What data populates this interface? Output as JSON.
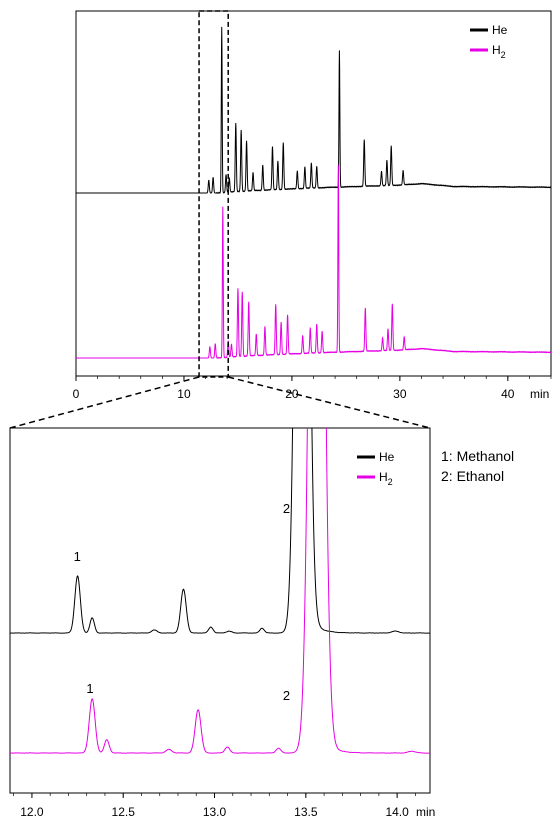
{
  "chart_data": [
    {
      "type": "line",
      "title": "",
      "xlabel": "min",
      "ylabel": "",
      "xlim": [
        0,
        44
      ],
      "x_ticks": [
        "0",
        "10",
        "20",
        "30",
        "40"
      ],
      "grid": false,
      "legend": {
        "placement": "top-right",
        "entries": [
          {
            "label": "He",
            "subscript": "",
            "color": "#000000"
          },
          {
            "label": "H",
            "subscript": "2",
            "color": "#e600e6"
          }
        ]
      },
      "zoom_window": [
        11.4,
        14.1
      ],
      "series": [
        {
          "name": "He",
          "color": "#000000",
          "baseline": 0,
          "noise_threshold": 13,
          "drift": [
            [
              0,
              0
            ],
            [
              13,
              0
            ],
            [
              16,
              3
            ],
            [
              22,
              7
            ],
            [
              30,
              11
            ],
            [
              32,
              13
            ],
            [
              35,
              9
            ],
            [
              44,
              8
            ]
          ],
          "peaks": [
            [
              12.3,
              18,
              0.05
            ],
            [
              12.7,
              22,
              0.05
            ],
            [
              13.5,
              230,
              0.04
            ],
            [
              13.9,
              25,
              0.05
            ],
            [
              14.2,
              20,
              0.05
            ],
            [
              14.8,
              95,
              0.05
            ],
            [
              15.3,
              85,
              0.05
            ],
            [
              15.8,
              70,
              0.05
            ],
            [
              16.4,
              25,
              0.05
            ],
            [
              17.3,
              35,
              0.05
            ],
            [
              18.2,
              60,
              0.05
            ],
            [
              18.7,
              40,
              0.05
            ],
            [
              19.2,
              65,
              0.05
            ],
            [
              20.5,
              25,
              0.05
            ],
            [
              21.2,
              30,
              0.05
            ],
            [
              21.8,
              35,
              0.05
            ],
            [
              22.3,
              30,
              0.05
            ],
            [
              24.4,
              190,
              0.04
            ],
            [
              26.7,
              65,
              0.05
            ],
            [
              28.3,
              20,
              0.05
            ],
            [
              28.8,
              35,
              0.05
            ],
            [
              29.2,
              55,
              0.05
            ],
            [
              30.3,
              20,
              0.05
            ]
          ]
        },
        {
          "name": "H2",
          "color": "#e600e6",
          "baseline": 0,
          "noise_threshold": 13,
          "drift": [
            [
              0,
              0
            ],
            [
              13,
              0
            ],
            [
              16,
              3
            ],
            [
              22,
              7
            ],
            [
              30,
              11
            ],
            [
              32,
              13
            ],
            [
              35,
              9
            ],
            [
              44,
              8
            ]
          ],
          "peaks": [
            [
              12.4,
              16,
              0.05
            ],
            [
              12.9,
              20,
              0.05
            ],
            [
              13.6,
              210,
              0.04
            ],
            [
              14.1,
              23,
              0.05
            ],
            [
              14.4,
              18,
              0.05
            ],
            [
              15.0,
              95,
              0.05
            ],
            [
              15.4,
              90,
              0.05
            ],
            [
              16.0,
              75,
              0.05
            ],
            [
              16.7,
              30,
              0.05
            ],
            [
              17.5,
              40,
              0.05
            ],
            [
              18.5,
              70,
              0.05
            ],
            [
              19.0,
              45,
              0.05
            ],
            [
              19.6,
              55,
              0.05
            ],
            [
              21.0,
              25,
              0.05
            ],
            [
              21.7,
              35,
              0.05
            ],
            [
              22.3,
              40,
              0.05
            ],
            [
              22.8,
              30,
              0.05
            ],
            [
              24.3,
              260,
              0.04
            ],
            [
              26.8,
              60,
              0.05
            ],
            [
              28.4,
              18,
              0.05
            ],
            [
              28.9,
              30,
              0.05
            ],
            [
              29.3,
              65,
              0.05
            ],
            [
              30.4,
              18,
              0.05
            ]
          ]
        }
      ]
    },
    {
      "type": "line",
      "title": "",
      "xlabel": "min",
      "ylabel": "",
      "xlim": [
        11.88,
        14.18
      ],
      "x_ticks": [
        "12.0",
        "12.5",
        "13.0",
        "13.5",
        "14.0"
      ],
      "grid": false,
      "legend": {
        "placement": "top-right",
        "entries": [
          {
            "label": "He",
            "subscript": "",
            "color": "#000000"
          },
          {
            "label": "H",
            "subscript": "2",
            "color": "#e600e6"
          }
        ]
      },
      "annotations": [
        {
          "text": "1",
          "series": "He",
          "x": 12.25,
          "y": 120
        },
        {
          "text": "2",
          "series": "He",
          "x": 13.44,
          "y": 200
        },
        {
          "text": "1",
          "series": "H2",
          "x": 12.32,
          "y": 100
        },
        {
          "text": "2",
          "series": "H2",
          "x": 13.44,
          "y": 88
        }
      ],
      "peak_key": [
        "1: Methanol",
        "2: Ethanol"
      ],
      "series": [
        {
          "name": "He",
          "color": "#000000",
          "baseline": 0,
          "noise_threshold": 2,
          "peaks": [
            [
              12.25,
              95,
              0.015
            ],
            [
              12.33,
              25,
              0.012
            ],
            [
              12.67,
              5,
              0.015
            ],
            [
              12.83,
              73,
              0.015
            ],
            [
              12.98,
              10,
              0.012
            ],
            [
              13.08,
              3,
              0.015
            ],
            [
              13.26,
              8,
              0.012
            ],
            [
              13.48,
              2000,
              0.028
            ],
            [
              13.99,
              3,
              0.02
            ]
          ],
          "tails": [
            [
              13.48,
              55,
              0.05
            ]
          ]
        },
        {
          "name": "H2",
          "color": "#e600e6",
          "baseline": 0,
          "noise_threshold": 2,
          "peaks": [
            [
              12.33,
              90,
              0.016
            ],
            [
              12.41,
              22,
              0.013
            ],
            [
              12.75,
              6,
              0.016
            ],
            [
              12.91,
              72,
              0.016
            ],
            [
              13.07,
              10,
              0.013
            ],
            [
              13.35,
              8,
              0.013
            ],
            [
              13.56,
              2000,
              0.032
            ],
            [
              14.08,
              3,
              0.02
            ]
          ],
          "tails": [
            [
              13.56,
              50,
              0.05
            ]
          ]
        }
      ]
    }
  ]
}
